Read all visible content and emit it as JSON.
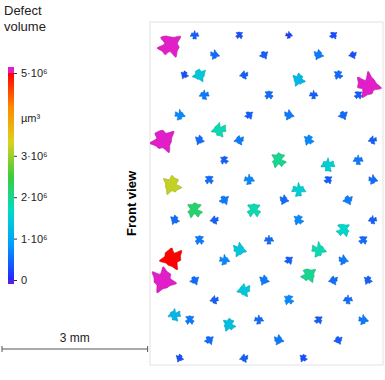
{
  "chart_data": {
    "type": "scatter",
    "annotation": "Front view",
    "tick_labels": false,
    "xlim": [
      0,
      4.8
    ],
    "ylim": [
      0,
      7
    ],
    "x": [
      0.41,
      4.49,
      0.27,
      0.27,
      0.45,
      0.45,
      1.43,
      2.65,
      3.67,
      2.14,
      3.06,
      3.98,
      3.47,
      3.27,
      1.84,
      1.02,
      3.06,
      1.94,
      1.63,
      0.51,
      0.92,
      0.92,
      1.84,
      2.86,
      3.78,
      1.33,
      2.35,
      3.47,
      4.18,
      0.71,
      1.94,
      3.88,
      1.12,
      2.45,
      3.37,
      4.29,
      0.61,
      2.04,
      2.86,
      3.98,
      1.02,
      1.84,
      3.27,
      4.59,
      1.53,
      4.29,
      1.22,
      2.04,
      3.67,
      4.59,
      1.53,
      2.76,
      4.08,
      0.51,
      1.33,
      3.06,
      4.59,
      1.02,
      2.45,
      4.39,
      1.53,
      2.86,
      3.98,
      0.92,
      2.35,
      3.78,
      4.49,
      1.33,
      2.86,
      4.08,
      0.82,
      2.24,
      3.47,
      4.39,
      1.22,
      2.65,
      3.88,
      0.61,
      1.94,
      3.16
    ],
    "values": [
      6.53,
      5.71,
      4.59,
      1.73,
      2.18,
      3.67,
      4.8,
      4.18,
      4.08,
      3.16,
      3.57,
      2.76,
      2.35,
      1.84,
      2.35,
      5.92,
      5.82,
      1.53,
      0.82,
      1.02,
      3.16,
      6.73,
      6.73,
      6.73,
      6.73,
      6.33,
      6.33,
      6.33,
      6.33,
      5.92,
      5.92,
      5.92,
      5.51,
      5.51,
      5.51,
      5.51,
      5.1,
      5.1,
      5.1,
      5.1,
      4.59,
      4.59,
      4.59,
      4.59,
      4.18,
      4.18,
      3.78,
      3.78,
      3.78,
      3.78,
      3.37,
      3.37,
      3.37,
      2.96,
      2.96,
      2.96,
      2.96,
      2.55,
      2.55,
      2.55,
      2.14,
      2.14,
      2.14,
      1.73,
      1.73,
      1.73,
      1.73,
      1.33,
      1.33,
      1.33,
      0.92,
      0.92,
      0.92,
      0.92,
      0.51,
      0.51,
      0.51,
      0.14,
      0.14,
      0.14
    ],
    "volume": [
      6000000,
      6000000,
      6000000,
      6000000,
      5000000,
      3200000,
      1800000,
      2000000,
      1500000,
      1800000,
      1500000,
      1600000,
      1800000,
      2000000,
      1400000,
      1400000,
      1200000,
      1400000,
      1300000,
      1200000,
      2200000,
      400000,
      300000,
      200000,
      300000,
      500000,
      400000,
      600000,
      300000,
      300000,
      400000,
      500000,
      600000,
      500000,
      400000,
      400000,
      700000,
      400000,
      600000,
      500000,
      500000,
      600000,
      700000,
      400000,
      400000,
      600000,
      500000,
      700000,
      400000,
      500000,
      600000,
      500000,
      600000,
      500000,
      400000,
      700000,
      400000,
      600000,
      500000,
      500000,
      700000,
      400000,
      600000,
      500000,
      600000,
      500000,
      400000,
      400000,
      700000,
      500000,
      600000,
      500000,
      400000,
      600000,
      500000,
      600000,
      400000,
      300000,
      400000,
      300000
    ],
    "colorbar": {
      "title": "Defect volume",
      "unit": "µm³",
      "range": [
        0,
        5000000
      ],
      "ticks": [
        0,
        {
          "value": 1000000,
          "label": "1·10⁶"
        },
        {
          "value": 2000000,
          "label": "2·10⁶"
        },
        {
          "value": 3000000,
          "label": "3·10⁶"
        },
        {
          "value": 5000000,
          "label": "5·10⁶"
        }
      ]
    },
    "scale_bar": {
      "value": 3,
      "label": "3 mm"
    }
  }
}
